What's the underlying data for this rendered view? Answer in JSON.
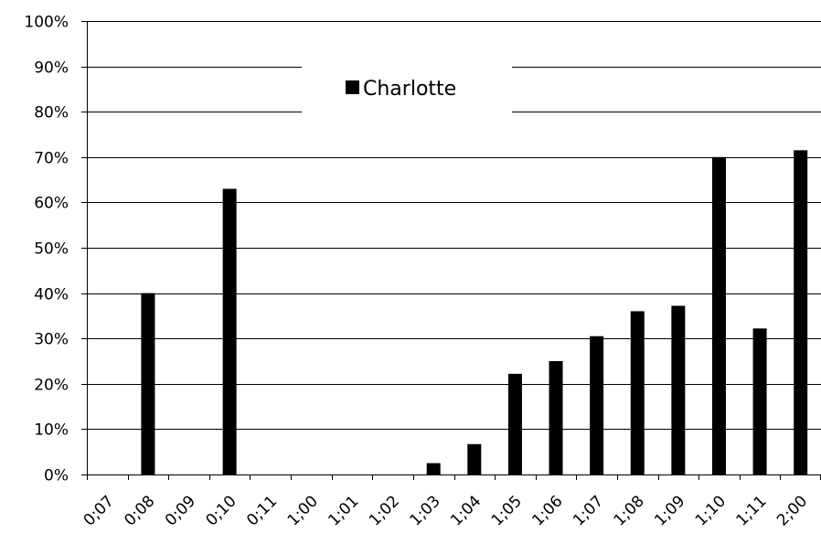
{
  "chart_data": {
    "type": "bar",
    "title": "",
    "xlabel": "",
    "ylabel": "",
    "categories": [
      "0;07",
      "0;08",
      "0;09",
      "0;10",
      "0;11",
      "1;00",
      "1;01",
      "1;02",
      "1;03",
      "1;04",
      "1;05",
      "1;06",
      "1;07",
      "1;08",
      "1;09",
      "1;10",
      "1;11",
      "2;00"
    ],
    "series": [
      {
        "name": "Charlotte",
        "color": "#000000",
        "values": [
          null,
          40,
          null,
          63,
          null,
          null,
          null,
          null,
          2.5,
          6.7,
          22.2,
          25,
          30.5,
          36,
          37.2,
          70,
          32.2,
          71.5
        ]
      }
    ],
    "ylim": [
      0,
      100
    ],
    "y_ticks": [
      "0%",
      "10%",
      "20%",
      "30%",
      "40%",
      "50%",
      "60%",
      "70%",
      "80%",
      "90%",
      "100%"
    ],
    "grid": true,
    "legend_position": "top-center"
  }
}
